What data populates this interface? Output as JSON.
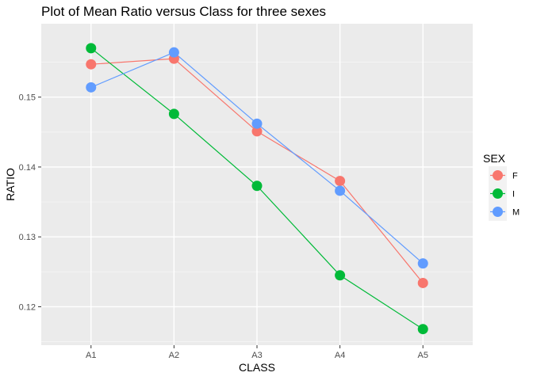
{
  "chart_data": {
    "type": "line",
    "title": "Plot of Mean Ratio versus Class for three sexes",
    "xlabel": "CLASS",
    "ylabel": "RATIO",
    "categories": [
      "A1",
      "A2",
      "A3",
      "A4",
      "A5"
    ],
    "yticks": [
      "0.12",
      "0.13",
      "0.14",
      "0.15"
    ],
    "ylim": [
      0.1145,
      0.1605
    ],
    "grid": true,
    "legend": {
      "title": "SEX",
      "position": "right"
    },
    "series": [
      {
        "name": "F",
        "color": "#F8766D",
        "values": [
          0.1547,
          0.1555,
          0.1451,
          0.138,
          0.1234
        ]
      },
      {
        "name": "I",
        "color": "#00BA38",
        "values": [
          0.157,
          0.1476,
          0.1373,
          0.1245,
          0.1168
        ]
      },
      {
        "name": "M",
        "color": "#619CFF",
        "values": [
          0.1514,
          0.1564,
          0.1462,
          0.1366,
          0.1262
        ]
      }
    ]
  }
}
